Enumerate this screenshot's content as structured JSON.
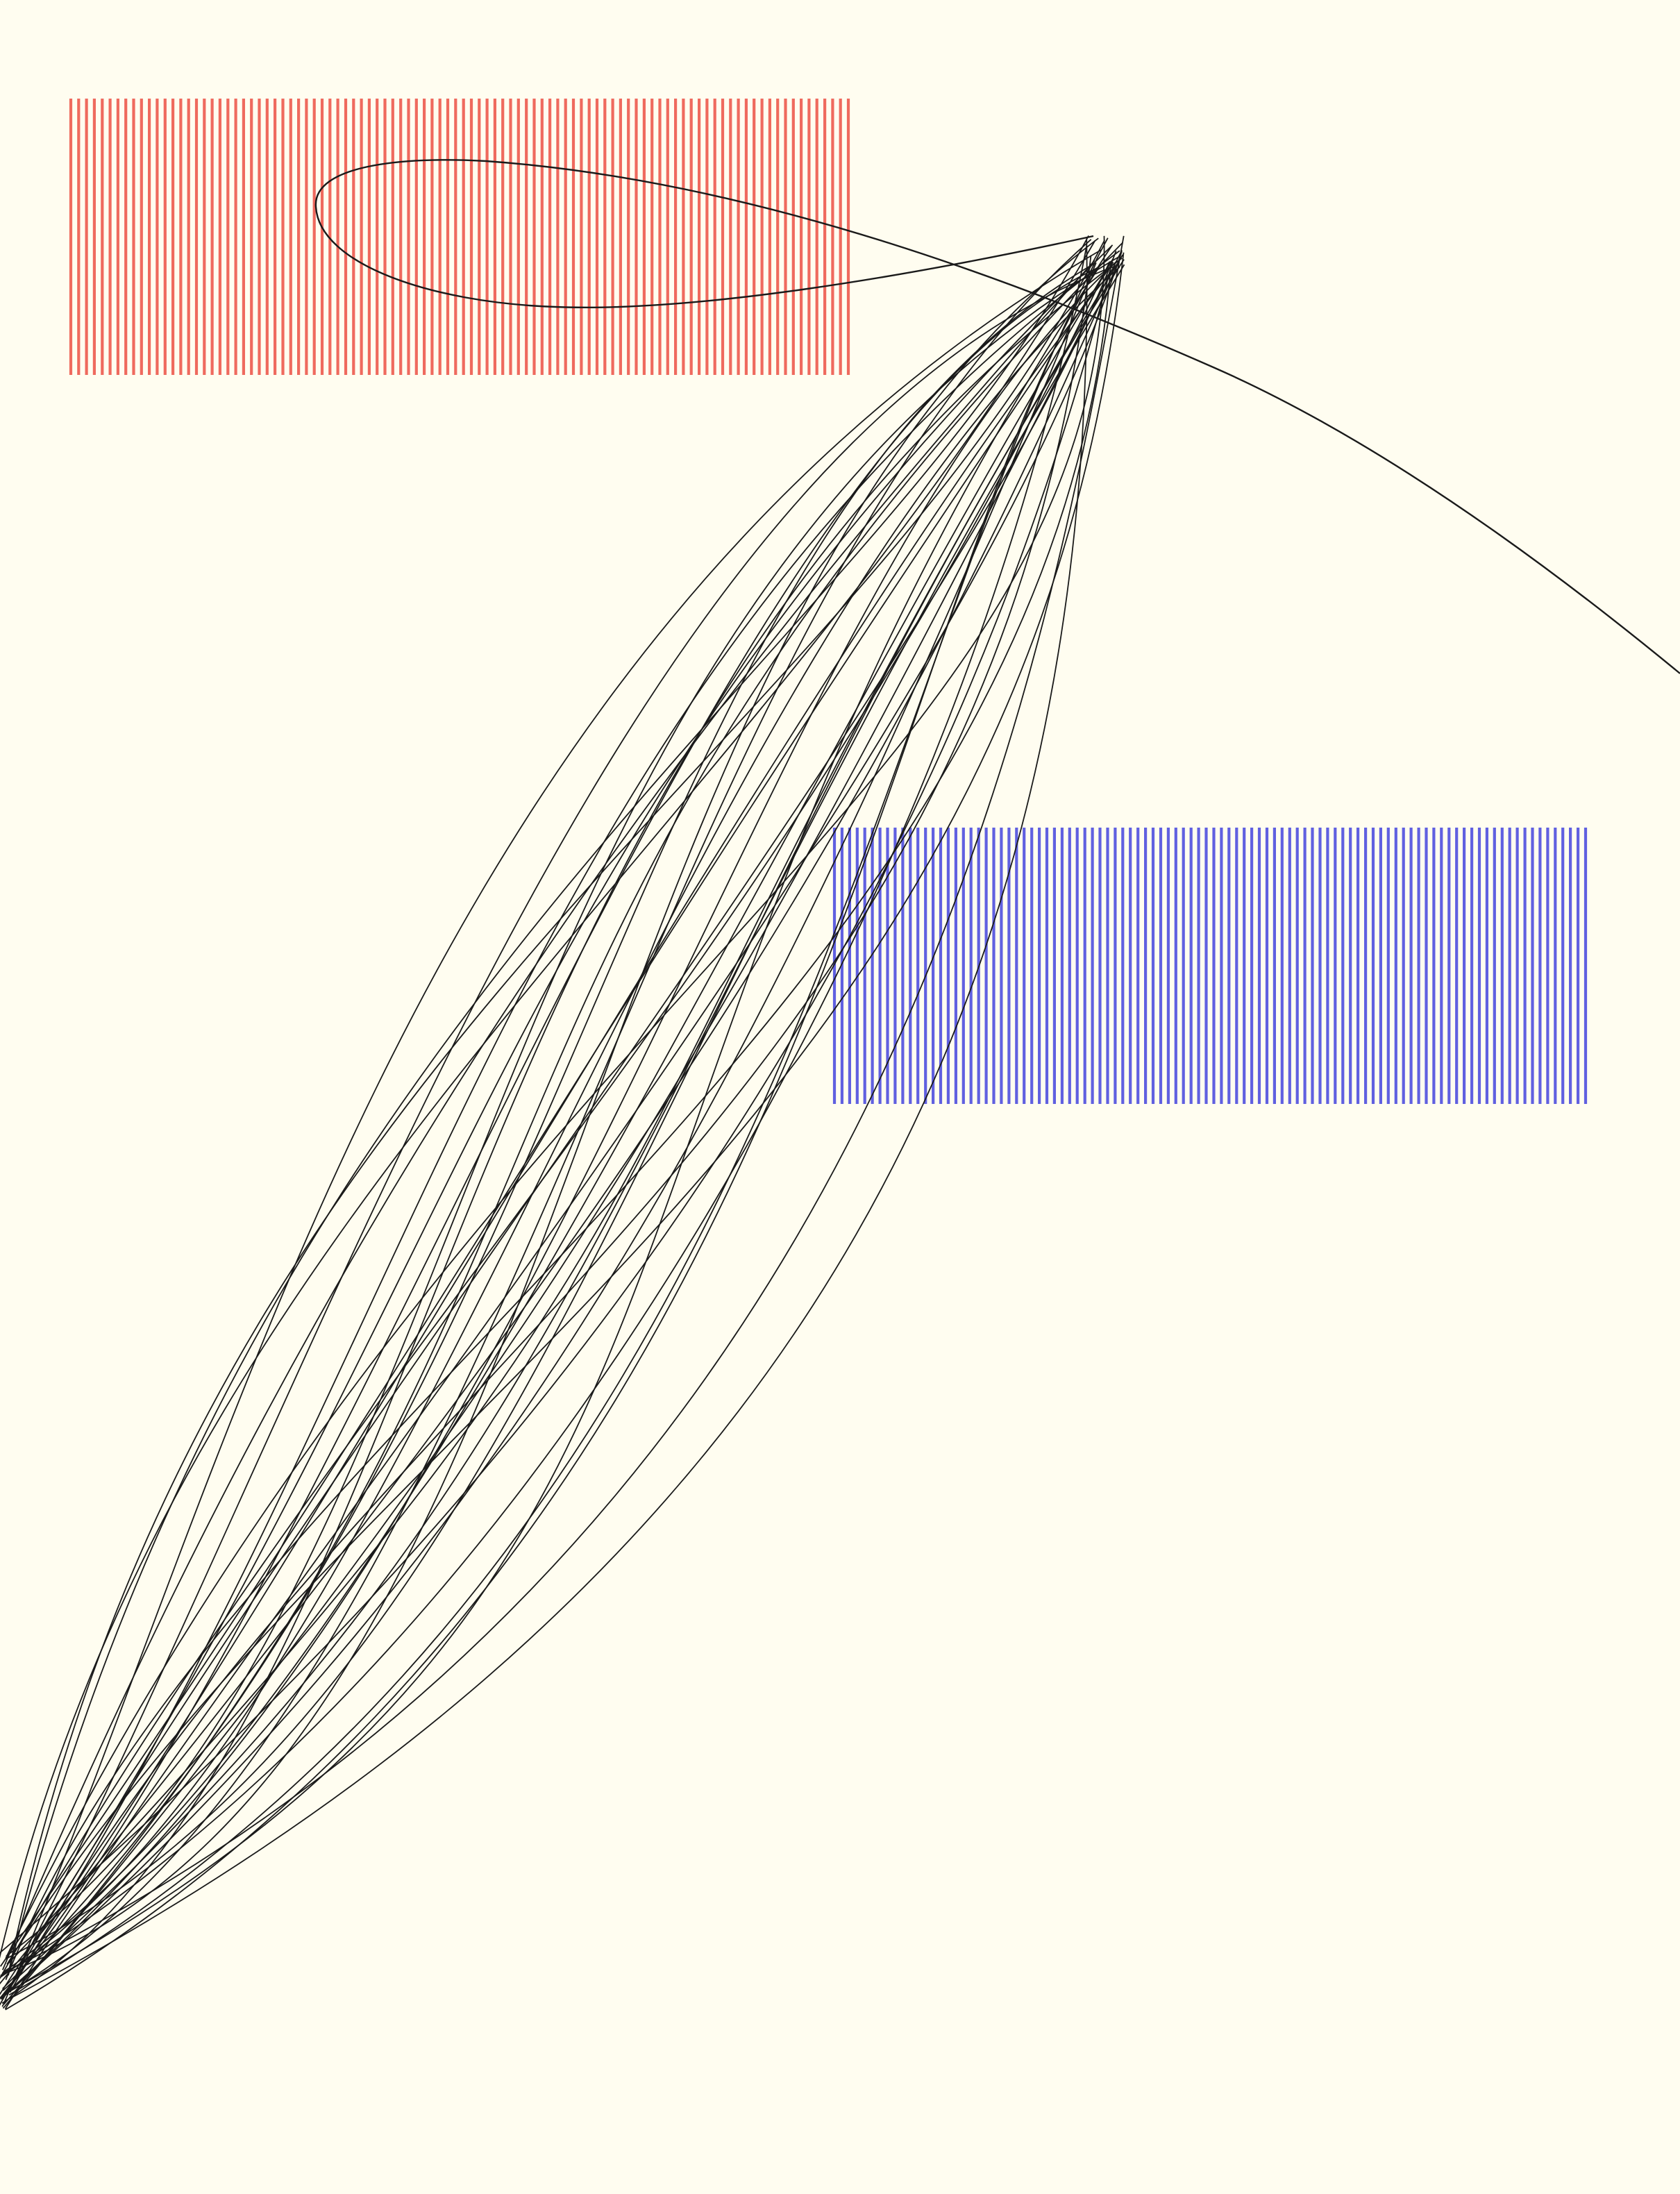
{
  "colors": {
    "background": "#fffdf0",
    "red_stripes": "#ef6a5e",
    "blue_stripes": "#6060e0",
    "curves": "#1a1a1a"
  },
  "red_block": {
    "color_name": "red",
    "stripe_count": 100
  },
  "blue_block": {
    "color_name": "blue",
    "stripe_count": 100
  },
  "curve_bundle": {
    "curve_count": 40
  }
}
